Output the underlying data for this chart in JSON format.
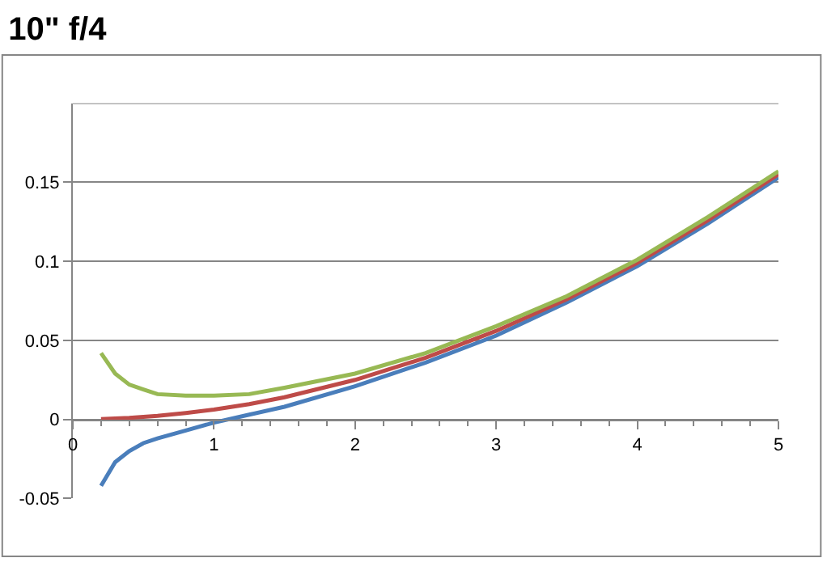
{
  "chart_data": {
    "type": "line",
    "title": "10\" f/4",
    "x": [
      0.2,
      0.3,
      0.4,
      0.5,
      0.6,
      0.8,
      1,
      1.25,
      1.5,
      2,
      2.5,
      3,
      3.5,
      4,
      4.5,
      5
    ],
    "series": [
      {
        "color": "#4a7ebb",
        "values": [
          -0.042,
          -0.027,
          -0.02,
          -0.015,
          -0.012,
          -0.007,
          -0.002,
          0.003,
          0.008,
          0.021,
          0.036,
          0.053,
          0.074,
          0.097,
          0.124,
          0.153
        ]
      },
      {
        "color": "#be4b48",
        "values": [
          0.0002,
          0.0006,
          0.001,
          0.0016,
          0.0022,
          0.004,
          0.0062,
          0.0097,
          0.014,
          0.025,
          0.039,
          0.056,
          0.076,
          0.099,
          0.126,
          0.155
        ]
      },
      {
        "color": "#98b954",
        "values": [
          0.042,
          0.029,
          0.022,
          0.019,
          0.016,
          0.015,
          0.015,
          0.016,
          0.02,
          0.029,
          0.042,
          0.059,
          0.078,
          0.101,
          0.128,
          0.157
        ]
      }
    ],
    "xlim": [
      0,
      5
    ],
    "xticks": [
      0,
      1,
      2,
      3,
      4,
      5
    ],
    "ylim": [
      -0.05,
      0.2
    ],
    "yticks": [
      -0.05,
      0,
      0.05,
      0.1,
      0.15
    ],
    "grid": "y",
    "legend": false,
    "marker": "none",
    "line_style": "solid"
  }
}
